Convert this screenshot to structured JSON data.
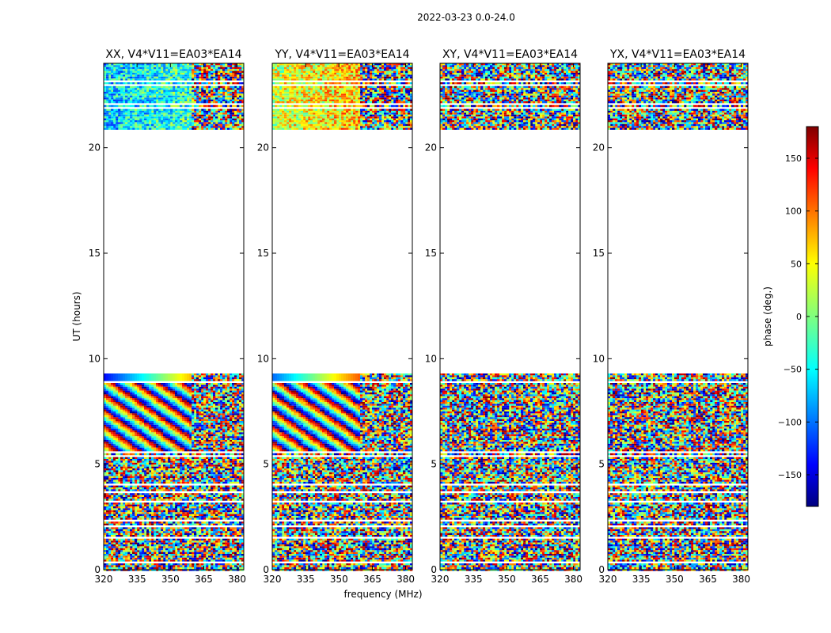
{
  "chart_data": {
    "type": "heatmap",
    "suptitle": "2022-03-23 0.0-24.0",
    "xlabel": "frequency (MHz)",
    "ylabel": "UT (hours)",
    "xlim": [
      320,
      383
    ],
    "ylim": [
      0,
      24
    ],
    "xticks": [
      320,
      335,
      350,
      365,
      380
    ],
    "yticks": [
      0,
      5,
      10,
      15,
      20
    ],
    "colorbar": {
      "label": "phase (deg.)",
      "range": [
        -180,
        180
      ],
      "ticks": [
        -150,
        -100,
        -50,
        0,
        50,
        100,
        150
      ],
      "tick_labels": [
        "−150",
        "−100",
        "−50",
        "0",
        "50",
        "100",
        "150"
      ],
      "colormap": "jet",
      "colors": [
        "#00007f",
        "#0000ff",
        "#007fff",
        "#00ffff",
        "#7fff7f",
        "#ffff00",
        "#ff7f00",
        "#ff0000",
        "#7f0000"
      ]
    },
    "panels": [
      {
        "title": "XX, V4*V11=EA03*EA14",
        "style": "coherent",
        "top_tint": -60
      },
      {
        "title": "YY, V4*V11=EA03*EA14",
        "style": "coherent",
        "top_tint": 30
      },
      {
        "title": "XY, V4*V11=EA03*EA14",
        "style": "noise",
        "top_tint": 0
      },
      {
        "title": "YX, V4*V11=EA03*EA14",
        "style": "noise",
        "top_tint": 0
      }
    ],
    "data_ranges_hours": [
      [
        0,
        9.3
      ],
      [
        20.9,
        24.0
      ]
    ],
    "gap_rows_hours": [
      0.35,
      1.6,
      2.1,
      2.35,
      3.3,
      3.75,
      4.05,
      5.45,
      5.6,
      8.9,
      21.95,
      22.15,
      23.05,
      23.2
    ]
  }
}
